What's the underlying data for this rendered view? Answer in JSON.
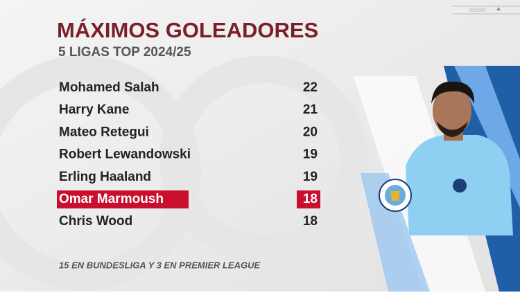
{
  "header": {
    "title": "MÁXIMOS GOLEADORES",
    "subtitle": "5 LIGAS TOP 2024/25"
  },
  "table": {
    "rows": [
      {
        "name": "Mohamed Salah",
        "goals": 22
      },
      {
        "name": "Harry Kane",
        "goals": 21
      },
      {
        "name": "Mateo Retegui",
        "goals": 20
      },
      {
        "name": "Robert Lewandowski",
        "goals": 19
      },
      {
        "name": "Erling Haaland",
        "goals": 19
      },
      {
        "name": "Omar Marmoush",
        "goals": 18,
        "highlight": true
      },
      {
        "name": "Chris Wood",
        "goals": 18
      }
    ]
  },
  "footnote": "15 EN BUNDESLIGA Y 3 EN PREMIER LEAGUE"
}
